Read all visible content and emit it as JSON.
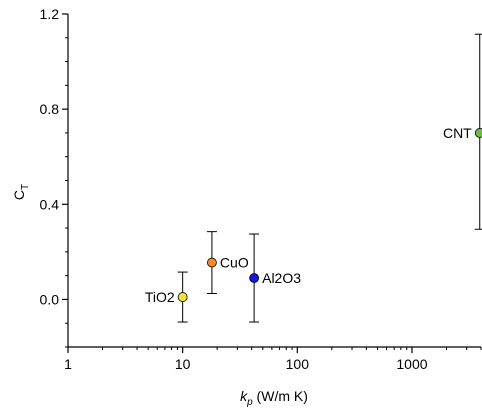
{
  "chart_data": {
    "type": "scatter",
    "xscale": "log",
    "ylabel": "C",
    "ylabel_sub": "T",
    "xlabel": "k",
    "xlabel_sub": "p",
    "xlabel_unit": " (W/m K)",
    "xlim": [
      1,
      4000
    ],
    "ylim": [
      -0.2,
      1.2
    ],
    "xticks": [
      1,
      10,
      100,
      1000
    ],
    "xtick_labels": [
      "1",
      "10",
      "100",
      "1000"
    ],
    "yticks": [
      0.0,
      0.4,
      0.8,
      1.2
    ],
    "ytick_labels": [
      "0.0",
      "0.4",
      "0.8",
      "1.2"
    ],
    "grid": false,
    "points": [
      {
        "label": "TiO2",
        "x": 10,
        "y": 0.01,
        "err_low": -0.095,
        "err_high": 0.115,
        "color": "#f2e33c",
        "label_side": "left"
      },
      {
        "label": "CuO",
        "x": 18,
        "y": 0.155,
        "err_low": 0.025,
        "err_high": 0.285,
        "color": "#f28a2a",
        "label_side": "right"
      },
      {
        "label": "Al2O3",
        "x": 42,
        "y": 0.09,
        "err_low": -0.095,
        "err_high": 0.275,
        "color": "#1515e0",
        "label_side": "right"
      },
      {
        "label": "CNT",
        "x": 3900,
        "y": 0.7,
        "err_low": 0.295,
        "err_high": 1.115,
        "color": "#6cbe45",
        "label_side": "left"
      }
    ]
  }
}
